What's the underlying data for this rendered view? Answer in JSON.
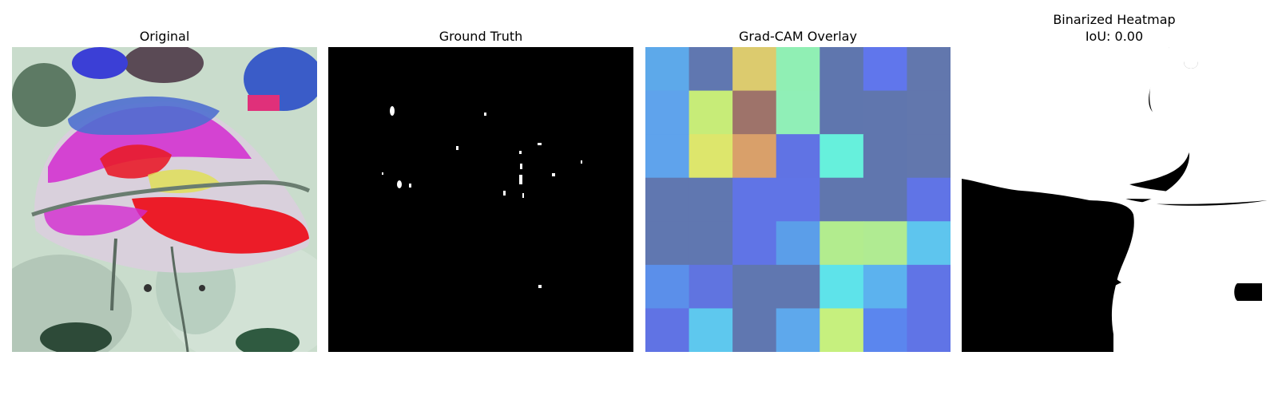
{
  "panels": [
    {
      "title": "Original"
    },
    {
      "title": "Ground Truth"
    },
    {
      "title": "Grad-CAM Overlay"
    },
    {
      "title": "Binarized Heatmap",
      "subtitle": "IoU: 0.00"
    }
  ],
  "gradcam": {
    "rows": 7,
    "cols": 7,
    "colors": [
      [
        "#5da9ea",
        "#6077b0",
        "#dccb6e",
        "#90efb4",
        "#5f76ae",
        "#6076ec",
        "#6277ad"
      ],
      [
        "#5fa3ec",
        "#c7ec78",
        "#9e736a",
        "#90efb7",
        "#5f76ae",
        "#6076ae",
        "#6277ad"
      ],
      [
        "#5fa3ec",
        "#dde66c",
        "#d9a06a",
        "#6073e4",
        "#66f0dc",
        "#6076ae",
        "#6277ad"
      ],
      [
        "#6077b0",
        "#6077b0",
        "#6074e6",
        "#6074e6",
        "#6076ae",
        "#6076ae",
        "#6074e6"
      ],
      [
        "#6077b0",
        "#6077b0",
        "#6074e6",
        "#5b9ee9",
        "#b2ec8e",
        "#b0eb92",
        "#5ec5ee"
      ],
      [
        "#5b8fea",
        "#6074e0",
        "#6077b0",
        "#6077b0",
        "#5ee3ea",
        "#5cb2ee",
        "#6074e6"
      ],
      [
        "#6073e4",
        "#5ec8ee",
        "#6077b0",
        "#5ea8ec",
        "#c6f07e",
        "#5b86ee",
        "#6074e6"
      ]
    ]
  }
}
